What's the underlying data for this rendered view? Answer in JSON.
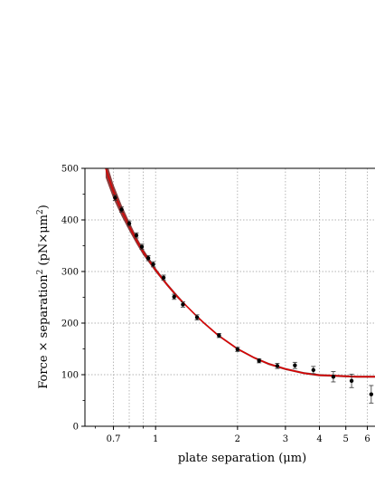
{
  "chart_data": {
    "type": "scatter",
    "x_scale": "log",
    "xlabel": "plate separation (μm)",
    "ylabel_main": "Force × separation",
    "ylabel_sup": "2",
    "ylabel_unit": " (pN×μm",
    "ylabel_unit_sup": "2",
    "ylabel_end": ")",
    "xlim": [
      0.55,
      6.4
    ],
    "ylim": [
      0,
      500
    ],
    "x_ticks": [
      {
        "value": 0.7,
        "label": "0.7"
      },
      {
        "value": 1,
        "label": "1"
      },
      {
        "value": 2,
        "label": "2"
      },
      {
        "value": 3,
        "label": "3"
      },
      {
        "value": 4,
        "label": "4"
      },
      {
        "value": 5,
        "label": "5"
      },
      {
        "value": 6,
        "label": "6"
      }
    ],
    "y_ticks": [
      {
        "value": 0,
        "label": "0"
      },
      {
        "value": 100,
        "label": "100"
      },
      {
        "value": 200,
        "label": "200"
      },
      {
        "value": 300,
        "label": "300"
      },
      {
        "value": 400,
        "label": "400"
      },
      {
        "value": 500,
        "label": "500"
      }
    ],
    "grid": true,
    "grid_x_values": [
      0.7,
      0.8,
      0.9,
      1,
      2,
      3,
      4,
      5,
      6
    ],
    "grid_y_values": [
      100,
      200,
      300,
      400
    ],
    "colors": {
      "points": "#000000",
      "fit_line": "#dd0000",
      "fit_band": "#7a1a1a",
      "grid": "#9a9a9a"
    },
    "points": [
      {
        "x": 0.71,
        "y": 443,
        "err": 5
      },
      {
        "x": 0.75,
        "y": 420,
        "err": 5
      },
      {
        "x": 0.8,
        "y": 393,
        "err": 5
      },
      {
        "x": 0.85,
        "y": 370,
        "err": 5
      },
      {
        "x": 0.89,
        "y": 348,
        "err": 5
      },
      {
        "x": 0.94,
        "y": 326,
        "err": 5
      },
      {
        "x": 0.98,
        "y": 314,
        "err": 5
      },
      {
        "x": 1.07,
        "y": 288,
        "err": 5
      },
      {
        "x": 1.17,
        "y": 251,
        "err": 5
      },
      {
        "x": 1.26,
        "y": 236,
        "err": 5
      },
      {
        "x": 1.42,
        "y": 211,
        "err": 5
      },
      {
        "x": 1.71,
        "y": 176,
        "err": 4
      },
      {
        "x": 2.0,
        "y": 149,
        "err": 4
      },
      {
        "x": 2.4,
        "y": 127,
        "err": 4
      },
      {
        "x": 2.8,
        "y": 117,
        "err": 5
      },
      {
        "x": 3.25,
        "y": 118,
        "err": 6
      },
      {
        "x": 3.8,
        "y": 109,
        "err": 7
      },
      {
        "x": 4.5,
        "y": 96,
        "err": 10
      },
      {
        "x": 5.25,
        "y": 88,
        "err": 13
      },
      {
        "x": 6.2,
        "y": 62,
        "err": 17
      }
    ],
    "fit": {
      "x": [
        0.655,
        0.7,
        0.75,
        0.8,
        0.85,
        0.9,
        0.95,
        1.0,
        1.1,
        1.2,
        1.3,
        1.4,
        1.5,
        1.7,
        2.0,
        2.3,
        2.6,
        3.0,
        3.5,
        4.0,
        4.5,
        5.0,
        5.5,
        6.0,
        6.4
      ],
      "y": [
        500,
        455,
        418,
        388,
        361,
        338,
        320,
        303,
        275,
        252,
        233,
        216,
        201,
        176,
        150,
        133,
        121,
        111,
        103,
        99,
        98,
        97,
        96,
        96,
        96
      ],
      "band_width": [
        18,
        14,
        11,
        9,
        7,
        6,
        5,
        4,
        3,
        3,
        2,
        2,
        2,
        2,
        2,
        2,
        2,
        2,
        2,
        2,
        2,
        2,
        2,
        2,
        2
      ]
    }
  }
}
